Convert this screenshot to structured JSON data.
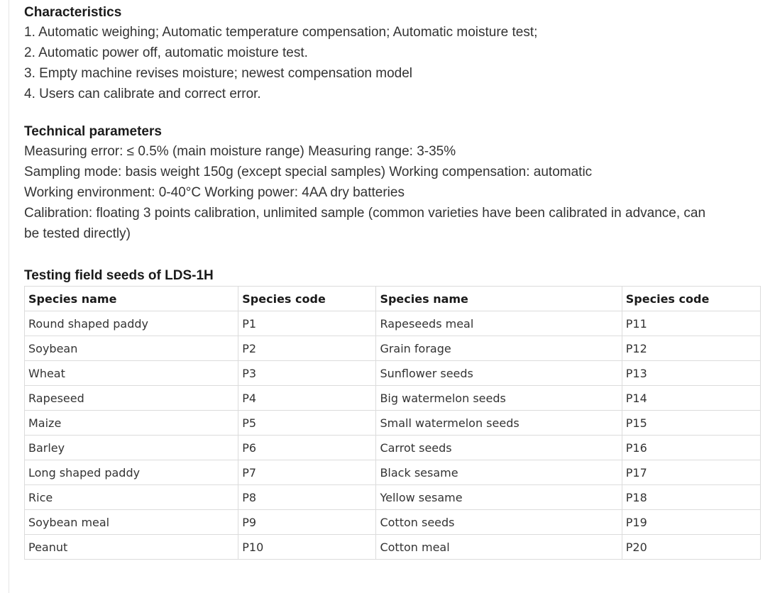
{
  "characteristics": {
    "title": "Characteristics",
    "items": [
      "1. Automatic weighing; Automatic temperature compensation; Automatic moisture test;",
      "2. Automatic power off, automatic moisture test.",
      "3. Empty machine revises moisture; newest compensation model",
      "4. Users can calibrate and correct error."
    ]
  },
  "technical": {
    "title": "Technical parameters",
    "lines": [
      "Measuring error: ≤ 0.5% (main moisture range) Measuring range: 3-35%",
      "Sampling mode: basis weight 150g (except special samples) Working compensation: automatic",
      "Working environment: 0-40°C Working power: 4AA dry batteries",
      "Calibration: floating 3 points calibration, unlimited sample (common varieties have been calibrated in advance, can",
      "be tested directly)"
    ]
  },
  "seeds_table": {
    "title": "Testing field seeds of LDS-1H",
    "headers": [
      "Species name",
      "Species code",
      "Species name",
      "Species code"
    ],
    "rows": [
      [
        "Round shaped paddy",
        "P1",
        "Rapeseeds meal",
        "P11"
      ],
      [
        "Soybean",
        "P2",
        "Grain forage",
        "P12"
      ],
      [
        "Wheat",
        "P3",
        "Sunflower seeds",
        "P13"
      ],
      [
        "Rapeseed",
        "P4",
        "Big watermelon seeds",
        "P14"
      ],
      [
        "Maize",
        "P5",
        "Small watermelon seeds",
        "P15"
      ],
      [
        "Barley",
        "P6",
        "Carrot seeds",
        "P16"
      ],
      [
        "Long shaped paddy",
        "P7",
        "Black sesame",
        "P17"
      ],
      [
        "Rice",
        "P8",
        "Yellow sesame",
        "P18"
      ],
      [
        "Soybean meal",
        "P9",
        "Cotton seeds",
        "P19"
      ],
      [
        "Peanut",
        "P10",
        "Cotton meal",
        "P20"
      ]
    ]
  }
}
